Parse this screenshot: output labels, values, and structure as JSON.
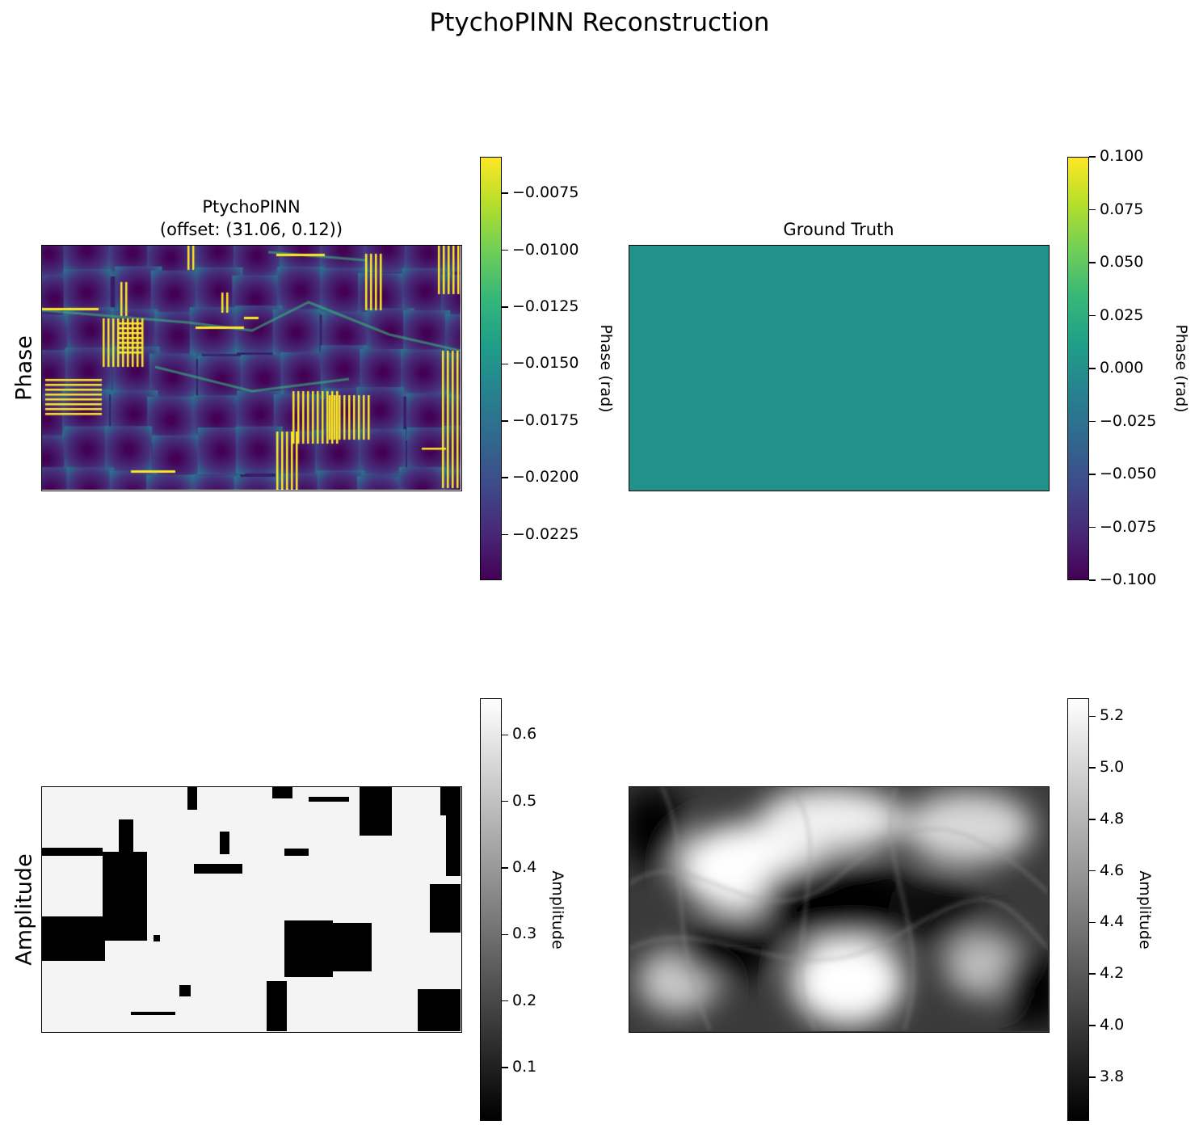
{
  "figure": {
    "title": "PtychoPINN Reconstruction",
    "row_labels": [
      "Phase",
      "Amplitude"
    ]
  },
  "colors": {
    "viridis_low": "#440154",
    "viridis_mid": "#21918c",
    "viridis_high": "#fde725",
    "gray_low": "#000000",
    "gray_high": "#ffffff"
  },
  "chart_data": [
    {
      "type": "heatmap",
      "panel": "phase-reconstruction",
      "title_line1": "PtychoPINN",
      "title_line2": "(offset: (31.06, 0.12))",
      "colormap": "viridis",
      "colorbar": {
        "label": "Phase (rad)",
        "range": [
          -0.0245,
          -0.0059
        ],
        "ticks": [
          -0.0075,
          -0.01,
          -0.0125,
          -0.015,
          -0.0175,
          -0.02,
          -0.0225
        ],
        "tick_labels": [
          "−0.0075",
          "−0.0100",
          "−0.0125",
          "−0.0150",
          "−0.0175",
          "−0.0200",
          "−0.0225"
        ]
      },
      "axes_ticks": false
    },
    {
      "type": "heatmap",
      "panel": "phase-ground-truth",
      "title": "Ground Truth",
      "colormap": "viridis",
      "uniform_value": 0.0,
      "colorbar": {
        "label": "Phase (rad)",
        "range": [
          -0.1,
          0.1
        ],
        "ticks": [
          0.1,
          0.075,
          0.05,
          0.025,
          0.0,
          -0.025,
          -0.05,
          -0.075,
          -0.1
        ],
        "tick_labels": [
          "0.100",
          "0.075",
          "0.050",
          "0.025",
          "0.000",
          "−0.025",
          "−0.050",
          "−0.075",
          "−0.100"
        ]
      },
      "axes_ticks": false
    },
    {
      "type": "heatmap",
      "panel": "amplitude-reconstruction",
      "colormap": "gray",
      "colorbar": {
        "label": "Amplitude",
        "range": [
          0.02,
          0.655
        ],
        "ticks": [
          0.6,
          0.5,
          0.4,
          0.3,
          0.2,
          0.1
        ],
        "tick_labels": [
          "0.6",
          "0.5",
          "0.4",
          "0.3",
          "0.2",
          "0.1"
        ]
      },
      "axes_ticks": false
    },
    {
      "type": "heatmap",
      "panel": "amplitude-ground-truth",
      "colormap": "gray",
      "colorbar": {
        "label": "Amplitude",
        "range": [
          3.63,
          5.27
        ],
        "ticks": [
          5.2,
          5.0,
          4.8,
          4.6,
          4.4,
          4.2,
          4.0,
          3.8
        ],
        "tick_labels": [
          "5.2",
          "5.0",
          "4.8",
          "4.6",
          "4.4",
          "4.2",
          "4.0",
          "3.8"
        ]
      },
      "axes_ticks": false
    }
  ]
}
